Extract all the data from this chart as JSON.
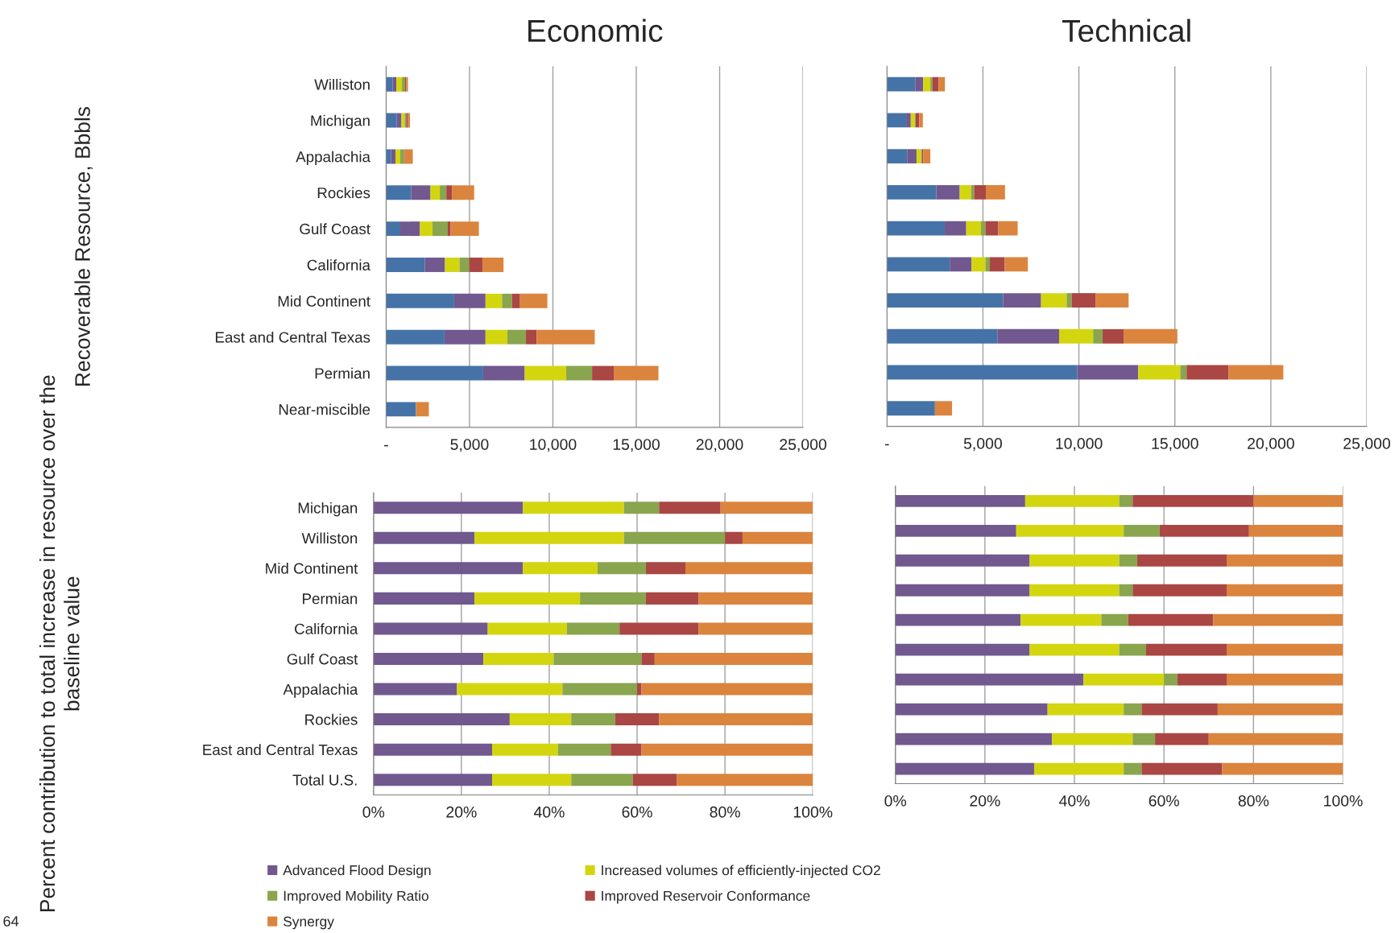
{
  "chart_data": [
    {
      "type": "bar",
      "orientation": "horizontal",
      "stacked": true,
      "title": "Economic",
      "ylabel": "Recoverable Resource, Bbbls",
      "categories": [
        "Williston",
        "Michigan",
        "Appalachia",
        "Rockies",
        "Gulf Coast",
        "California",
        "Mid Continent",
        "East and Central Texas",
        "Permian",
        "Near-miscible"
      ],
      "series": [
        {
          "color": "#4573a7",
          "values": [
            390,
            630,
            290,
            1500,
            850,
            2320,
            4080,
            3500,
            5820,
            1790
          ]
        },
        {
          "color": "#71588f",
          "values": [
            220,
            290,
            270,
            1160,
            1180,
            1210,
            1880,
            2460,
            2490,
            0
          ]
        },
        {
          "color": "#d3d60f",
          "values": [
            340,
            190,
            290,
            560,
            750,
            870,
            990,
            1310,
            2490,
            0
          ]
        },
        {
          "color": "#89a54e",
          "values": [
            190,
            100,
            220,
            390,
            920,
            580,
            600,
            1110,
            1550,
            0
          ]
        },
        {
          "color": "#aa4643",
          "values": [
            70,
            100,
            50,
            340,
            170,
            800,
            480,
            650,
            1300,
            0
          ]
        },
        {
          "color": "#db843d",
          "values": [
            100,
            120,
            480,
            1330,
            1690,
            1260,
            1640,
            3480,
            2680,
            770
          ]
        }
      ],
      "xlim": [
        0,
        25000
      ],
      "xticks": [
        {
          "value": 0,
          "label": "-"
        },
        {
          "value": 5000,
          "label": "5,000"
        },
        {
          "value": 10000,
          "label": "10,000"
        },
        {
          "value": 15000,
          "label": "15,000"
        },
        {
          "value": 20000,
          "label": "20,000"
        },
        {
          "value": 25000,
          "label": "25,000"
        }
      ],
      "grid": "x"
    },
    {
      "type": "bar",
      "orientation": "horizontal",
      "stacked": true,
      "title": "Technical",
      "categories": [
        null,
        null,
        null,
        null,
        null,
        null,
        null,
        null,
        null,
        null
      ],
      "series": [
        {
          "color": "#4573a7",
          "values": [
            1470,
            1000,
            1050,
            2570,
            3010,
            3270,
            6050,
            5750,
            9910,
            2500
          ]
        },
        {
          "color": "#71588f",
          "values": [
            420,
            240,
            490,
            1220,
            1120,
            1140,
            1980,
            3220,
            3180,
            0
          ]
        },
        {
          "color": "#d3d60f",
          "values": [
            370,
            210,
            240,
            590,
            770,
            720,
            1330,
            1770,
            2190,
            0
          ]
        },
        {
          "color": "#89a54e",
          "values": [
            100,
            40,
            40,
            160,
            230,
            230,
            260,
            490,
            330,
            0
          ]
        },
        {
          "color": "#aa4643",
          "values": [
            330,
            190,
            70,
            610,
            670,
            770,
            1260,
            1100,
            2190,
            0
          ]
        },
        {
          "color": "#db843d",
          "values": [
            330,
            190,
            370,
            1000,
            1010,
            1210,
            1710,
            2800,
            2850,
            890
          ]
        }
      ],
      "xlim": [
        0,
        25000
      ],
      "xticks": [
        {
          "value": 0,
          "label": "-"
        },
        {
          "value": 5000,
          "label": "5,000"
        },
        {
          "value": 10000,
          "label": "10,000"
        },
        {
          "value": 15000,
          "label": "15,000"
        },
        {
          "value": 20000,
          "label": "20,000"
        },
        {
          "value": 25000,
          "label": "25,000"
        }
      ],
      "grid": "x"
    },
    {
      "type": "bar",
      "orientation": "horizontal",
      "stacked": true,
      "ylabel": "Percent contribution to total increase in resource over the baseline value",
      "categories": [
        "Michigan",
        "Williston",
        "Mid Continent",
        "Permian",
        "California",
        "Gulf Coast",
        "Appalachia",
        "Rockies",
        "East and Central Texas",
        "Total U.S."
      ],
      "series": [
        {
          "name": "Advanced Flood Design",
          "color": "#71588f",
          "values": [
            34,
            23,
            34,
            23,
            26,
            25,
            19,
            31,
            27,
            27
          ]
        },
        {
          "name": "Increased volumes of efficiently-injected CO2",
          "color": "#d3d60f",
          "values": [
            23,
            34,
            17,
            24,
            18,
            16,
            24,
            14,
            15,
            18
          ]
        },
        {
          "name": "Improved Mobility Ratio",
          "color": "#89a54e",
          "values": [
            8,
            23,
            11,
            15,
            12,
            20,
            17,
            10,
            12,
            14
          ]
        },
        {
          "name": "Improved Reservoir Conformance",
          "color": "#aa4643",
          "values": [
            14,
            4,
            9,
            12,
            18,
            3,
            1,
            10,
            7,
            10
          ]
        },
        {
          "name": "Synergy",
          "color": "#db843d",
          "values": [
            21,
            16,
            29,
            26,
            26,
            36,
            39,
            35,
            39,
            31
          ]
        }
      ],
      "xlim": [
        0,
        100
      ],
      "xticks": [
        {
          "value": 0,
          "label": "0%"
        },
        {
          "value": 20,
          "label": "20%"
        },
        {
          "value": 40,
          "label": "40%"
        },
        {
          "value": 60,
          "label": "60%"
        },
        {
          "value": 80,
          "label": "80%"
        },
        {
          "value": 100,
          "label": "100%"
        }
      ],
      "grid": "x",
      "legend": "bottom",
      "annotations": [
        "64"
      ]
    },
    {
      "type": "bar",
      "orientation": "horizontal",
      "stacked": true,
      "categories": [
        null,
        null,
        null,
        null,
        null,
        null,
        null,
        null,
        null,
        null
      ],
      "series": [
        {
          "color": "#71588f",
          "values": [
            29,
            27,
            30,
            30,
            28,
            30,
            42,
            34,
            35,
            31
          ]
        },
        {
          "color": "#d3d60f",
          "values": [
            21,
            24,
            20,
            20,
            18,
            20,
            18,
            17,
            18,
            20
          ]
        },
        {
          "color": "#89a54e",
          "values": [
            3,
            8,
            4,
            3,
            6,
            6,
            3,
            4,
            5,
            4
          ]
        },
        {
          "color": "#aa4643",
          "values": [
            27,
            20,
            20,
            21,
            19,
            18,
            11,
            17,
            12,
            18
          ]
        },
        {
          "color": "#db843d",
          "values": [
            20,
            21,
            26,
            26,
            29,
            26,
            26,
            28,
            30,
            27
          ]
        }
      ],
      "xlim": [
        0,
        100
      ],
      "xticks": [
        {
          "value": 0,
          "label": "0%"
        },
        {
          "value": 20,
          "label": "20%"
        },
        {
          "value": 40,
          "label": "40%"
        },
        {
          "value": 60,
          "label": "60%"
        },
        {
          "value": 80,
          "label": "80%"
        },
        {
          "value": 100,
          "label": "100%"
        }
      ],
      "grid": "x"
    }
  ]
}
